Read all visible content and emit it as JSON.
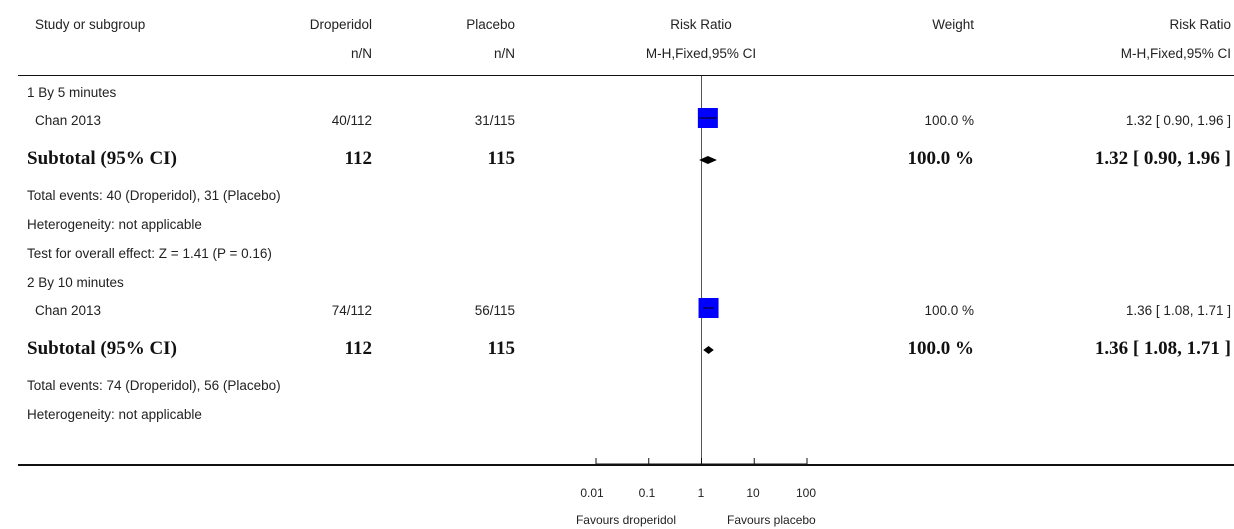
{
  "header": {
    "study": "Study or subgroup",
    "exp": "Droperidol",
    "ctrl": "Placebo",
    "rr": "Risk Ratio",
    "weight": "Weight",
    "rr2": "Risk Ratio",
    "exp_sub": "n/N",
    "ctrl_sub": "n/N",
    "rr_sub": "M-H,Fixed,95% CI",
    "rr2_sub": "M-H,Fixed,95% CI"
  },
  "groups": [
    {
      "title": "1 By 5 minutes",
      "study": {
        "name": "Chan 2013",
        "exp": "40/112",
        "ctrl": "31/115",
        "weight": "100.0 %",
        "ci": "1.32 [ 0.90, 1.96 ]"
      },
      "subtotal": {
        "label": "Subtotal (95% CI)",
        "exp": "112",
        "ctrl": "115",
        "weight": "100.0 %",
        "ci": "1.32 [ 0.90, 1.96 ]"
      },
      "notes": [
        "Total events: 40 (Droperidol), 31 (Placebo)",
        "Heterogeneity: not applicable",
        "Test for overall effect: Z = 1.41 (P = 0.16)"
      ]
    },
    {
      "title": "2 By 10 minutes",
      "study": {
        "name": "Chan 2013",
        "exp": "74/112",
        "ctrl": "56/115",
        "weight": "100.0 %",
        "ci": "1.36 [ 1.08, 1.71 ]"
      },
      "subtotal": {
        "label": "Subtotal (95% CI)",
        "exp": "112",
        "ctrl": "115",
        "weight": "100.0 %",
        "ci": "1.36 [ 1.08, 1.71 ]"
      },
      "notes": [
        "Total events: 74 (Droperidol), 56 (Placebo)",
        "Heterogeneity: not applicable"
      ]
    }
  ],
  "axis": {
    "ticks": [
      "0.01",
      "0.1",
      "1",
      "10",
      "100"
    ],
    "favours_left": "Favours droperidol",
    "favours_right": "Favours placebo"
  },
  "colors": {
    "study_marker": "#0000ff",
    "diamond": "#000000",
    "rule": "#111111"
  },
  "chart_data": {
    "type": "forest",
    "scale": "log",
    "xlim": [
      0.01,
      100
    ],
    "ticks": [
      0.01,
      0.1,
      1,
      10,
      100
    ],
    "reference_line": 1,
    "xlabel_left": "Favours droperidol",
    "xlabel_right": "Favours placebo",
    "rows": [
      {
        "group": "1 By 5 minutes",
        "kind": "study",
        "label": "Chan 2013",
        "rr": 1.32,
        "lower": 0.9,
        "upper": 1.96,
        "weight": 100.0
      },
      {
        "group": "1 By 5 minutes",
        "kind": "subtotal",
        "label": "Subtotal (95% CI)",
        "rr": 1.32,
        "lower": 0.9,
        "upper": 1.96,
        "weight": 100.0
      },
      {
        "group": "2 By 10 minutes",
        "kind": "study",
        "label": "Chan 2013",
        "rr": 1.36,
        "lower": 1.08,
        "upper": 1.71,
        "weight": 100.0
      },
      {
        "group": "2 By 10 minutes",
        "kind": "subtotal",
        "label": "Subtotal (95% CI)",
        "rr": 1.36,
        "lower": 1.08,
        "upper": 1.71,
        "weight": 100.0
      }
    ]
  }
}
